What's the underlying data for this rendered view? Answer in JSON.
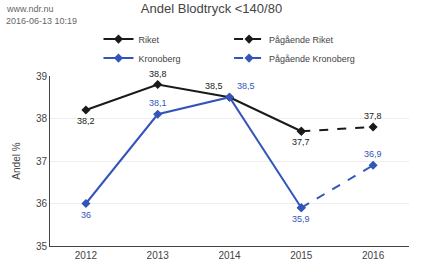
{
  "chart_data": {
    "type": "line",
    "title": "Andel Blodtryck <140/80",
    "annotations": [
      "www.ndr.nu",
      "2016-06-13 10:19"
    ],
    "ylabel": "Andel %",
    "x": [
      2012,
      2013,
      2014,
      2015,
      2016
    ],
    "xlim": [
      2011.5,
      2016.5
    ],
    "xticks": [
      2012,
      2013,
      2014,
      2015,
      2016
    ],
    "ylim": [
      35,
      39
    ],
    "yticks": [
      35,
      36,
      37,
      38,
      39
    ],
    "grid": "y",
    "legend": "top",
    "marker": "diamond",
    "data_labels": true,
    "series": [
      {
        "name": "Riket",
        "color": "#1a1a1a",
        "line_style": "solid",
        "values": [
          38.2,
          38.8,
          38.5,
          37.7,
          null
        ],
        "value_labels": [
          "38,2",
          "38,8",
          "38,5",
          "37,7",
          null
        ]
      },
      {
        "name": "Pågående Riket",
        "color": "#1a1a1a",
        "line_style": "dashed",
        "values": [
          null,
          null,
          null,
          37.7,
          37.8
        ],
        "value_labels": [
          null,
          null,
          null,
          null,
          "37,8"
        ]
      },
      {
        "name": "Kronoberg",
        "color": "#3355bb",
        "line_style": "solid",
        "values": [
          36.0,
          38.1,
          38.5,
          35.9,
          null
        ],
        "value_labels": [
          "36",
          "38,1",
          "38,5",
          "35,9",
          null
        ]
      },
      {
        "name": "Pågående Kronoberg",
        "color": "#3355bb",
        "line_style": "dashed",
        "values": [
          null,
          null,
          null,
          35.9,
          36.9
        ],
        "value_labels": [
          null,
          null,
          null,
          null,
          "36,9"
        ]
      }
    ]
  }
}
